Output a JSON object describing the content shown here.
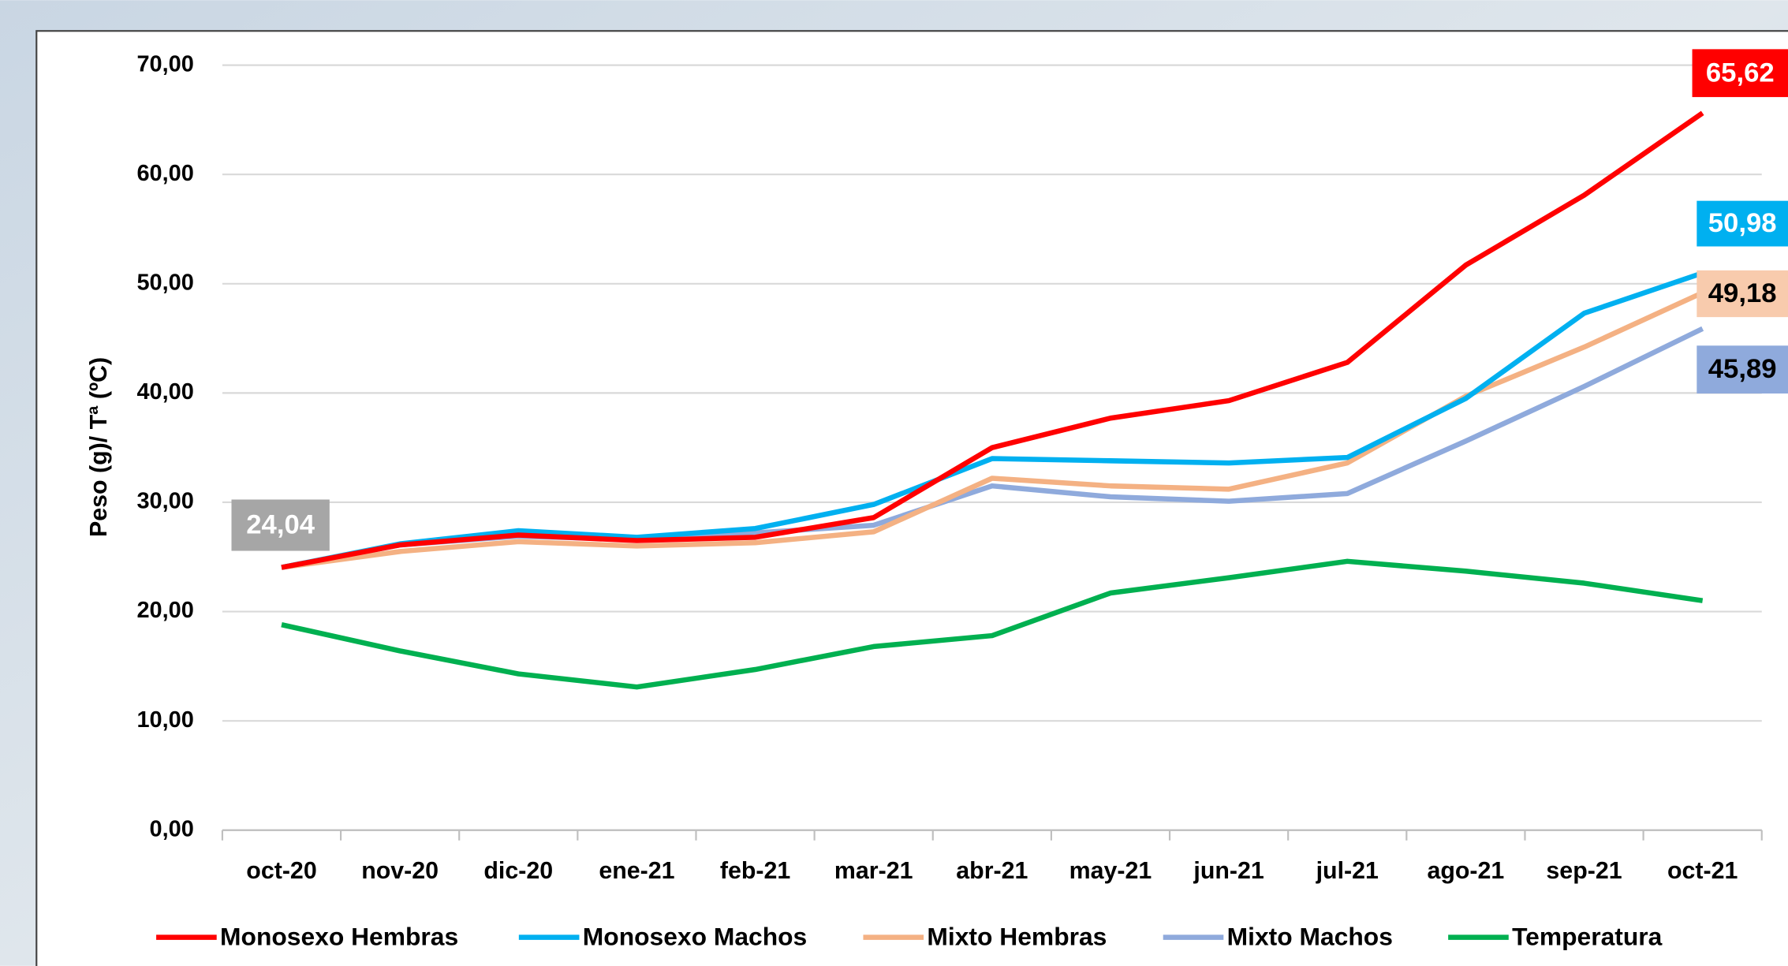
{
  "chart_data": {
    "type": "line",
    "ylabel": "Peso (g)/ Tª (ºC)",
    "categories": [
      "oct-20",
      "nov-20",
      "dic-20",
      "ene-21",
      "feb-21",
      "mar-21",
      "abr-21",
      "may-21",
      "jun-21",
      "jul-21",
      "ago-21",
      "sep-21",
      "oct-21"
    ],
    "series": [
      {
        "name": "Monosexo Hembras",
        "color": "#ff0000",
        "values": [
          24.04,
          26.1,
          27.0,
          26.5,
          26.8,
          28.6,
          35.0,
          37.7,
          39.3,
          42.8,
          51.7,
          58.1,
          65.62
        ],
        "value_labels": [
          "24,04",
          null,
          null,
          null,
          null,
          null,
          null,
          null,
          null,
          null,
          null,
          null,
          "65,62"
        ]
      },
      {
        "name": "Monosexo Machos",
        "color": "#00b0f0",
        "values": [
          24.04,
          26.2,
          27.4,
          26.8,
          27.6,
          29.8,
          34.0,
          33.8,
          33.6,
          34.1,
          39.5,
          47.3,
          50.98
        ],
        "value_labels": [
          null,
          null,
          null,
          null,
          null,
          null,
          null,
          null,
          null,
          null,
          null,
          null,
          "50,98"
        ]
      },
      {
        "name": "Mixto Hembras",
        "color": "#f4b183",
        "values": [
          24.04,
          25.5,
          26.4,
          26.0,
          26.3,
          27.3,
          32.2,
          31.5,
          31.2,
          33.6,
          39.7,
          44.2,
          49.18
        ],
        "value_labels": [
          null,
          null,
          null,
          null,
          null,
          null,
          null,
          null,
          null,
          null,
          null,
          null,
          "49,18"
        ]
      },
      {
        "name": "Mixto Machos",
        "color": "#8faadc",
        "values": [
          24.04,
          26.1,
          26.9,
          26.6,
          27.2,
          27.9,
          31.5,
          30.5,
          30.1,
          30.8,
          35.6,
          40.6,
          45.89
        ],
        "value_labels": [
          null,
          null,
          null,
          null,
          null,
          null,
          null,
          null,
          null,
          null,
          null,
          null,
          "45,89"
        ]
      },
      {
        "name": "Temperatura",
        "color": "#00b050",
        "values": [
          18.8,
          16.4,
          14.3,
          13.1,
          14.7,
          16.8,
          17.8,
          21.7,
          23.1,
          24.6,
          23.7,
          22.6,
          21.0
        ]
      }
    ],
    "ylim": [
      0,
      70
    ],
    "yticks": [
      {
        "value": 0,
        "label": "0,00"
      },
      {
        "value": 10,
        "label": "10,00"
      },
      {
        "value": 20,
        "label": "20,00"
      },
      {
        "value": 30,
        "label": "30,00"
      },
      {
        "value": 40,
        "label": "40,00"
      },
      {
        "value": 50,
        "label": "50,00"
      },
      {
        "value": 60,
        "label": "60,00"
      },
      {
        "value": 70,
        "label": "70,00"
      }
    ],
    "grid": true,
    "legend": "bottom"
  }
}
